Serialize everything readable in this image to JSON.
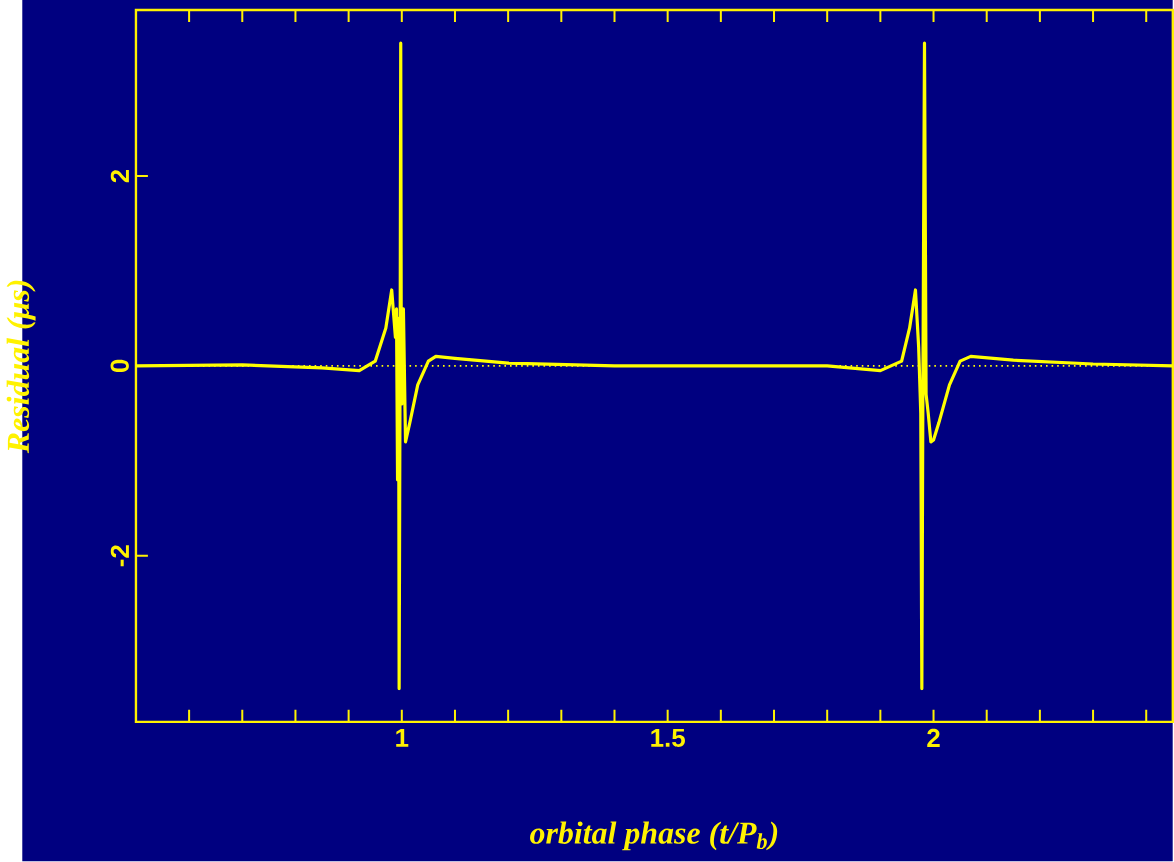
{
  "chart_data": {
    "type": "line",
    "xlabel": "orbital phase (t/P$_{b}$)",
    "ylabel": "Residual (μs)",
    "xlim": [
      0.5,
      2.45
    ],
    "ylim": [
      -3.75,
      3.75
    ],
    "xticks": [
      {
        "value": 0.6,
        "label": null
      },
      {
        "value": 0.7,
        "label": null
      },
      {
        "value": 0.8,
        "label": null
      },
      {
        "value": 0.9,
        "label": null
      },
      1,
      {
        "value": 1.1,
        "label": null
      },
      {
        "value": 1.2,
        "label": null
      },
      {
        "value": 1.3,
        "label": null
      },
      {
        "value": 1.4,
        "label": null
      },
      1.5,
      {
        "value": 1.6,
        "label": null
      },
      {
        "value": 1.7,
        "label": null
      },
      {
        "value": 1.8,
        "label": null
      },
      {
        "value": 1.9,
        "label": null
      },
      2,
      {
        "value": 2.1,
        "label": null
      },
      {
        "value": 2.2,
        "label": null
      },
      {
        "value": 2.3,
        "label": null
      },
      {
        "value": 2.4,
        "label": null
      }
    ],
    "yticks": [
      -2,
      0,
      2
    ],
    "ref_lines": [
      {
        "axis": "y",
        "value": 0,
        "color": "#ffff00",
        "line_style": "dotted"
      }
    ],
    "series": [
      {
        "color": "#ffff00",
        "x": [
          0.5,
          0.7,
          0.85,
          0.92,
          0.95,
          0.97,
          0.981,
          0.988,
          0.99,
          0.992,
          0.994,
          0.995,
          0.997,
          0.998,
          0.999,
          1.0,
          1.003,
          1.007,
          1.015,
          1.03,
          1.05,
          1.064,
          1.1,
          1.2,
          1.4,
          1.6,
          1.8,
          1.9,
          1.94,
          1.955,
          1.966,
          1.972,
          1.976,
          1.978,
          1.98,
          1.983,
          1.986,
          1.99,
          1.995,
          2.0,
          2.01,
          2.03,
          2.05,
          2.07,
          2.15,
          2.3,
          2.45
        ],
        "values": [
          0,
          0.01,
          -0.02,
          -0.05,
          0.05,
          0.4,
          0.8,
          0.3,
          0.6,
          -1.2,
          0.5,
          -3.4,
          0.5,
          3.4,
          0,
          -0.4,
          0.6,
          -0.8,
          -0.6,
          -0.2,
          0.05,
          0.1,
          0.08,
          0.03,
          0,
          0,
          0,
          -0.05,
          0.05,
          0.4,
          0.8,
          0.2,
          -0.5,
          -3.4,
          -0.2,
          3.4,
          -0.3,
          -0.5,
          -0.8,
          -0.78,
          -0.6,
          -0.2,
          0.05,
          0.1,
          0.06,
          0.02,
          0
        ]
      }
    ],
    "marker": "none",
    "line_style": "solid",
    "grid": false
  }
}
